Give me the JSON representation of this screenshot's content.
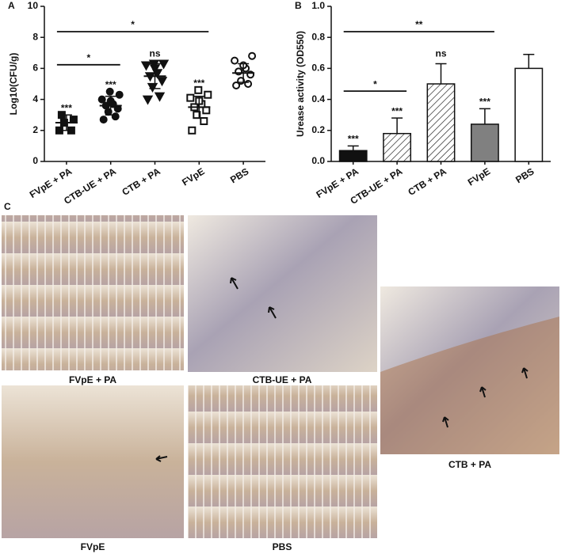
{
  "chart_data": [
    {
      "type": "dot",
      "panel": "A",
      "ylabel": "Log10(CFU/g)",
      "categories": [
        "FVpE + PA",
        "CTB-UE + PA",
        "CTB + PA",
        "FVpE",
        "PBS"
      ],
      "markers": [
        "square",
        "circle",
        "triangle-down",
        "square-open",
        "circle-open"
      ],
      "color": "#111111",
      "points": [
        [
          2.0,
          2.0,
          2.5,
          2.7,
          3.0
        ],
        [
          2.7,
          2.9,
          3.2,
          3.4,
          3.6,
          3.7,
          3.9,
          4.0,
          4.3,
          4.5
        ],
        [
          4.0,
          4.2,
          4.8,
          5.2,
          5.5,
          5.7,
          6.0,
          6.2,
          6.3,
          6.3
        ],
        [
          2.0,
          2.6,
          3.0,
          3.3,
          3.5,
          3.7,
          3.9,
          4.1,
          4.3,
          4.6
        ],
        [
          4.9,
          5.0,
          5.2,
          5.6,
          5.8,
          6.0,
          6.2,
          6.5,
          6.8
        ]
      ],
      "means": [
        2.5,
        3.6,
        5.5,
        3.5,
        5.7
      ],
      "sd": [
        0.5,
        0.6,
        0.8,
        0.7,
        0.6
      ],
      "significance": [
        "***",
        "***",
        "ns",
        "***",
        null
      ],
      "comparisons": [
        {
          "text": "*",
          "from": "FVpE + PA",
          "to": "CTB-UE + PA"
        },
        {
          "text": "*",
          "from": "FVpE + PA",
          "to": "FVpE"
        }
      ],
      "ylim": [
        0,
        10
      ],
      "yticks": [
        0,
        2,
        4,
        6,
        8,
        10
      ]
    },
    {
      "type": "bar",
      "panel": "B",
      "ylabel": "Urease activity (OD550)",
      "categories": [
        "FVpE + PA",
        "CTB-UE + PA",
        "CTB + PA",
        "FVpE",
        "PBS"
      ],
      "values": [
        0.07,
        0.18,
        0.5,
        0.24,
        0.6
      ],
      "errors": [
        0.03,
        0.1,
        0.13,
        0.1,
        0.09
      ],
      "colors": [
        "#111111",
        "#ffffff",
        "#ffffff",
        "#808080",
        "#ffffff"
      ],
      "hatch": [
        false,
        true,
        true,
        false,
        false
      ],
      "significance": [
        "***",
        "***",
        "ns",
        "***",
        null
      ],
      "comparisons": [
        {
          "text": "*",
          "from": "FVpE + PA",
          "to": "CTB-UE + PA"
        },
        {
          "text": "**",
          "from": "FVpE + PA",
          "to": "FVpE"
        }
      ],
      "ylim": [
        0,
        1
      ],
      "yticks": [
        {
          "value": 0,
          "label": "0.0"
        },
        0.2,
        0.4,
        0.6,
        0.8,
        {
          "value": 1,
          "label": "1.0"
        }
      ]
    }
  ],
  "panel_c": {
    "label": "C",
    "images": [
      {
        "caption": "FVpE + PA"
      },
      {
        "caption": "CTB-UE + PA"
      },
      {
        "caption": "FVpE"
      },
      {
        "caption": "PBS"
      },
      {
        "caption": "CTB + PA"
      }
    ]
  }
}
